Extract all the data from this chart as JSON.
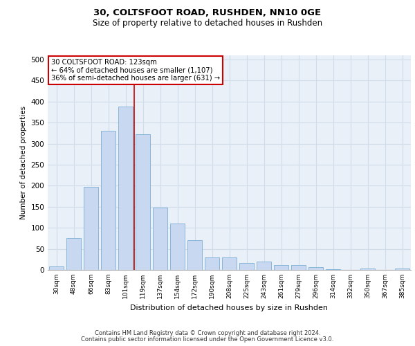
{
  "title1": "30, COLTSFOOT ROAD, RUSHDEN, NN10 0GE",
  "title2": "Size of property relative to detached houses in Rushden",
  "xlabel": "Distribution of detached houses by size in Rushden",
  "ylabel": "Number of detached properties",
  "categories": [
    "30sqm",
    "48sqm",
    "66sqm",
    "83sqm",
    "101sqm",
    "119sqm",
    "137sqm",
    "154sqm",
    "172sqm",
    "190sqm",
    "208sqm",
    "225sqm",
    "243sqm",
    "261sqm",
    "279sqm",
    "296sqm",
    "314sqm",
    "332sqm",
    "350sqm",
    "367sqm",
    "385sqm"
  ],
  "values": [
    8,
    76,
    197,
    330,
    388,
    323,
    148,
    110,
    70,
    30,
    30,
    17,
    20,
    12,
    11,
    6,
    2,
    0,
    4,
    0,
    4
  ],
  "bar_color": "#c8d8f0",
  "bar_edge_color": "#7bafd4",
  "ref_line_x": 4.5,
  "annotation_text": "30 COLTSFOOT ROAD: 123sqm\n← 64% of detached houses are smaller (1,107)\n36% of semi-detached houses are larger (631) →",
  "annotation_box_color": "#ffffff",
  "annotation_box_edge_color": "#cc0000",
  "grid_color": "#d0dce8",
  "background_color": "#eaf0f8",
  "ylim": [
    0,
    510
  ],
  "yticks": [
    0,
    50,
    100,
    150,
    200,
    250,
    300,
    350,
    400,
    450,
    500
  ],
  "footer_line1": "Contains HM Land Registry data © Crown copyright and database right 2024.",
  "footer_line2": "Contains public sector information licensed under the Open Government Licence v3.0."
}
